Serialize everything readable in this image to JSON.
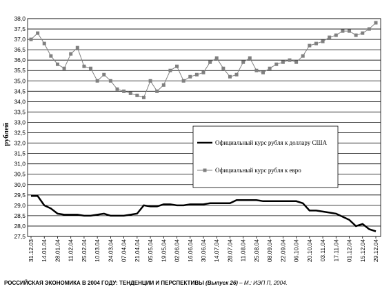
{
  "chart_data": {
    "type": "line",
    "y_label": "рублей",
    "categories": [
      "31.12.03",
      null,
      "14.01.04",
      null,
      "28.01.04",
      null,
      "11.02.04",
      null,
      "25.02.04",
      null,
      "10.03.04",
      null,
      "24.03.04",
      null,
      "07.04.04",
      null,
      "21.04.04",
      null,
      "05.05.04",
      null,
      "19.05.04",
      null,
      "02.06.04",
      null,
      "16.06.04",
      null,
      "30.06.04",
      null,
      "14.07.04",
      null,
      "28.07.04",
      null,
      "11.08.04",
      null,
      "25.08.04",
      null,
      "08.09.04",
      null,
      "22.09.04",
      null,
      "06.10.04",
      null,
      "20.10.04",
      null,
      "03.11.04",
      null,
      "17.11.04",
      null,
      "01.12.04",
      null,
      "15.12.04",
      null,
      "29.12.04"
    ],
    "series": [
      {
        "name": "Официальный курс рубля к доллару США",
        "color": "#000000",
        "marker": "none",
        "values": [
          29.45,
          29.45,
          29.0,
          28.85,
          28.6,
          28.55,
          28.55,
          28.55,
          28.5,
          28.5,
          28.55,
          28.6,
          28.5,
          28.5,
          28.5,
          28.55,
          28.6,
          29.0,
          28.95,
          28.95,
          29.05,
          29.05,
          29.0,
          29.0,
          29.05,
          29.05,
          29.05,
          29.1,
          29.1,
          29.1,
          29.1,
          29.25,
          29.25,
          29.25,
          29.25,
          29.2,
          29.2,
          29.2,
          29.2,
          29.2,
          29.2,
          29.1,
          28.75,
          28.75,
          28.7,
          28.65,
          28.6,
          28.45,
          28.3,
          28.0,
          28.1,
          27.85,
          27.75
        ]
      },
      {
        "name": "Официальный курс рубля к евро",
        "color": "#808080",
        "marker": "square",
        "values": [
          37.0,
          37.3,
          36.8,
          36.2,
          35.8,
          35.6,
          36.3,
          36.6,
          35.7,
          35.6,
          35.0,
          35.3,
          35.0,
          34.6,
          34.5,
          34.4,
          34.3,
          34.2,
          35.0,
          34.5,
          34.8,
          35.5,
          35.7,
          35.0,
          35.2,
          35.3,
          35.4,
          35.9,
          36.1,
          35.6,
          35.2,
          35.3,
          35.9,
          36.1,
          35.5,
          35.4,
          35.6,
          35.8,
          35.9,
          36.0,
          35.9,
          36.2,
          36.7,
          36.8,
          36.9,
          37.1,
          37.2,
          37.4,
          37.4,
          37.2,
          37.3,
          37.5,
          37.8
        ]
      }
    ],
    "ylim": [
      27.5,
      38.0
    ],
    "yticks": [
      {
        "value": 27.5,
        "label": "27,5"
      },
      {
        "value": 28,
        "label": "28,0"
      },
      {
        "value": 28.5,
        "label": "28,5"
      },
      {
        "value": 29,
        "label": "29,0"
      },
      {
        "value": 29.5,
        "label": "29,5"
      },
      {
        "value": 30,
        "label": "30,0"
      },
      {
        "value": 30.5,
        "label": "30,5"
      },
      {
        "value": 31,
        "label": "31,0"
      },
      {
        "value": 31.5,
        "label": "31,5"
      },
      {
        "value": 32,
        "label": "32,0"
      },
      {
        "value": 32.5,
        "label": "32,5"
      },
      {
        "value": 33,
        "label": "33,0"
      },
      {
        "value": 33.5,
        "label": "33,5"
      },
      {
        "value": 34,
        "label": "34,0"
      },
      {
        "value": 34.5,
        "label": "34,5"
      },
      {
        "value": 35,
        "label": "35,0"
      },
      {
        "value": 35.5,
        "label": "35,5"
      },
      {
        "value": 36,
        "label": "36,0"
      },
      {
        "value": 36.5,
        "label": "36,5"
      },
      {
        "value": 37,
        "label": "37,0"
      },
      {
        "value": 37.5,
        "label": "37,5"
      },
      {
        "value": 38,
        "label": "38,0"
      }
    ],
    "grid": true,
    "legend_position": "center-right",
    "source": {
      "main": "РОССИЙСКАЯ ЭКОНОМИКА В 2004 ГОДУ: ТЕНДЕНЦИИ И ПЕРСПЕКТИВЫ",
      "issue": "(Выпуск 26)",
      "publisher": " – М.: ИЭП П, 2004."
    }
  }
}
